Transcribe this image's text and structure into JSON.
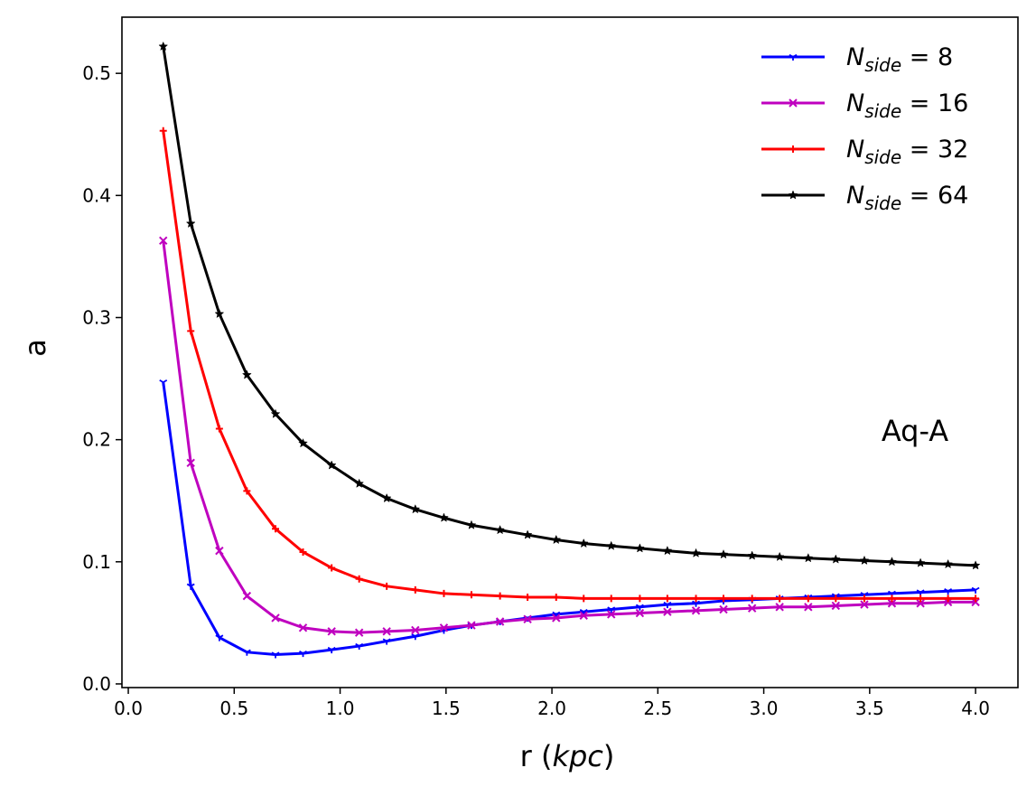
{
  "chart_data": {
    "type": "line",
    "title": "",
    "xlabel": "r (kpc)",
    "xlabel_main": "r (",
    "xlabel_italic": "kpc",
    "xlabel_close": ")",
    "ylabel": "a",
    "xlim": [
      -0.03,
      4.2
    ],
    "ylim": [
      -0.003,
      0.546
    ],
    "xticks": [
      0.0,
      0.5,
      1.0,
      1.5,
      2.0,
      2.5,
      3.0,
      3.5,
      4.0
    ],
    "xtick_labels": [
      "0.0",
      "0.5",
      "1.0",
      "1.5",
      "2.0",
      "2.5",
      "3.0",
      "3.5",
      "4.0"
    ],
    "yticks": [
      0.0,
      0.1,
      0.2,
      0.3,
      0.4,
      0.5
    ],
    "ytick_labels": [
      "0.0",
      "0.1",
      "0.2",
      "0.3",
      "0.4",
      "0.5"
    ],
    "grid": false,
    "legend_position": "top-right",
    "annotation": "Aq-A",
    "x": [
      0.165,
      0.295,
      0.43,
      0.56,
      0.695,
      0.825,
      0.96,
      1.09,
      1.22,
      1.355,
      1.49,
      1.62,
      1.755,
      1.885,
      2.02,
      2.15,
      2.28,
      2.415,
      2.545,
      2.68,
      2.81,
      2.945,
      3.075,
      3.21,
      3.34,
      3.475,
      3.605,
      3.74,
      3.87,
      4.0
    ],
    "series": [
      {
        "name": "N_side = 8",
        "legend_main": "N",
        "legend_sub": "side",
        "legend_value": " = 8",
        "color": "#0000ff",
        "marker": "tri",
        "values": [
          0.247,
          0.08,
          0.038,
          0.026,
          0.024,
          0.025,
          0.028,
          0.031,
          0.035,
          0.039,
          0.044,
          0.048,
          0.051,
          0.054,
          0.057,
          0.059,
          0.061,
          0.063,
          0.065,
          0.066,
          0.068,
          0.069,
          0.07,
          0.071,
          0.072,
          0.073,
          0.074,
          0.075,
          0.076,
          0.077
        ]
      },
      {
        "name": "N_side = 16",
        "legend_main": "N",
        "legend_sub": "side",
        "legend_value": " = 16",
        "color": "#bf00bf",
        "marker": "x",
        "values": [
          0.363,
          0.181,
          0.109,
          0.072,
          0.054,
          0.046,
          0.043,
          0.042,
          0.043,
          0.044,
          0.046,
          0.048,
          0.051,
          0.053,
          0.054,
          0.056,
          0.057,
          0.058,
          0.059,
          0.06,
          0.061,
          0.062,
          0.063,
          0.063,
          0.064,
          0.065,
          0.066,
          0.066,
          0.067,
          0.067
        ]
      },
      {
        "name": "N_side = 32",
        "legend_main": "N",
        "legend_sub": "side",
        "legend_value": " = 32",
        "color": "#ff0000",
        "marker": "plus",
        "values": [
          0.453,
          0.289,
          0.209,
          0.158,
          0.127,
          0.108,
          0.095,
          0.086,
          0.08,
          0.077,
          0.074,
          0.073,
          0.072,
          0.071,
          0.071,
          0.07,
          0.07,
          0.07,
          0.07,
          0.07,
          0.07,
          0.07,
          0.07,
          0.07,
          0.07,
          0.07,
          0.07,
          0.07,
          0.07,
          0.07
        ]
      },
      {
        "name": "N_side = 64",
        "legend_main": "N",
        "legend_sub": "side",
        "legend_value": " = 64",
        "color": "#000000",
        "marker": "star",
        "values": [
          0.522,
          0.377,
          0.303,
          0.253,
          0.221,
          0.197,
          0.179,
          0.164,
          0.152,
          0.143,
          0.136,
          0.13,
          0.126,
          0.122,
          0.118,
          0.115,
          0.113,
          0.111,
          0.109,
          0.107,
          0.106,
          0.105,
          0.104,
          0.103,
          0.102,
          0.101,
          0.1,
          0.099,
          0.098,
          0.097
        ]
      }
    ]
  }
}
